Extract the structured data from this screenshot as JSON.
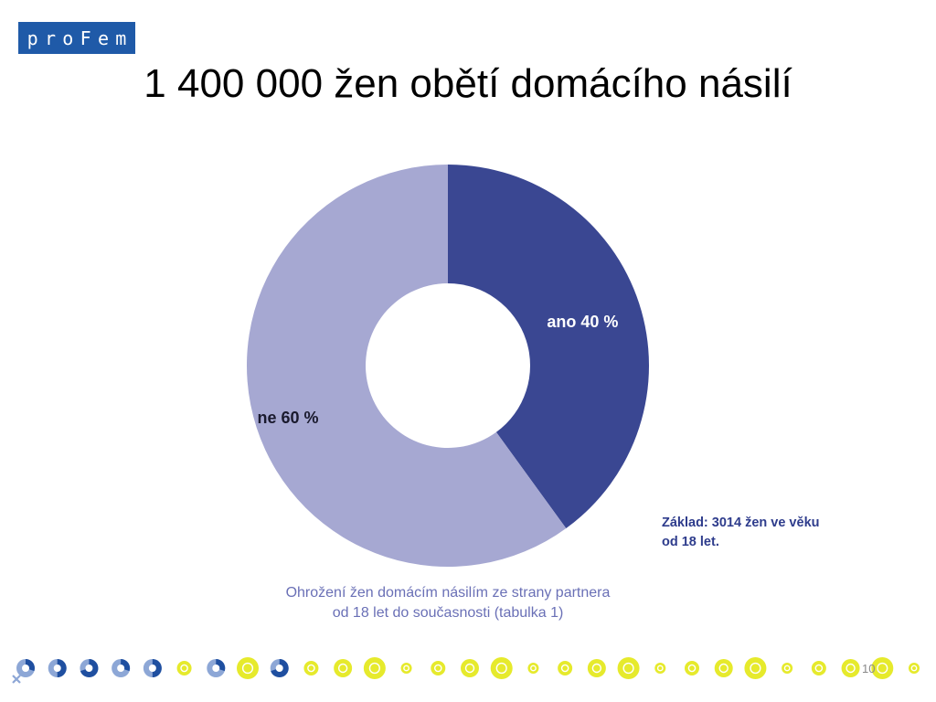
{
  "logo": {
    "letters": [
      "p",
      "r",
      "o",
      "F",
      "e",
      "m"
    ],
    "color": "#1f5aa8"
  },
  "title": "1 400 000 žen obětí domácího násilí",
  "chart_data": {
    "type": "pie",
    "variant": "donut",
    "start": "12 o'clock, clockwise",
    "categories": [
      "ano",
      "ne"
    ],
    "values": [
      40,
      60
    ],
    "labels": [
      "ano 40 %",
      "ne 60 %"
    ],
    "colors": [
      "#3a4792",
      "#a6a8d2"
    ],
    "title": "",
    "caption_lines": [
      "Ohrožení žen domácím násilím ze strany partnera",
      "od 18 let do současnosti (tabulka 1)"
    ]
  },
  "note_lines": [
    "Základ: 3014 žen ve věku",
    "od 18 let."
  ],
  "page_number": "10",
  "footer_icons": [
    "female-symbol-donut-icon",
    "donut-icon",
    "donut-icon",
    "donut-icon",
    "donut-icon",
    "number-badge-icon",
    "donut-icon",
    "number-badge-icon",
    "donut-icon",
    "number-badge-icon",
    "number-badge-icon",
    "number-badge-icon",
    "number-badge-icon",
    "number-badge-icon",
    "number-badge-icon",
    "number-badge-icon",
    "number-badge-icon",
    "number-badge-icon",
    "number-badge-icon",
    "number-badge-icon",
    "number-badge-icon",
    "number-badge-icon",
    "number-badge-icon",
    "number-badge-icon",
    "number-badge-icon",
    "number-badge-icon",
    "number-badge-icon",
    "number-badge-icon",
    "number-badge-icon"
  ]
}
